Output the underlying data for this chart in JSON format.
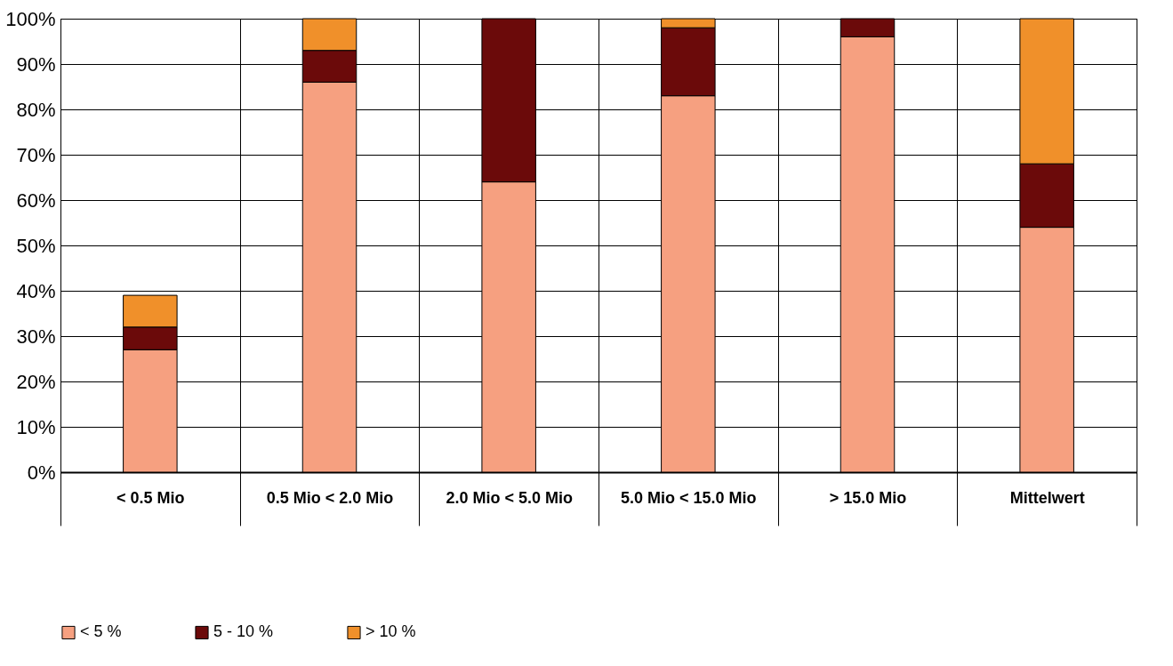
{
  "chart_data": {
    "type": "bar",
    "stacked": true,
    "categories": [
      "< 0.5 Mio",
      "0.5 Mio < 2.0 Mio",
      "2.0 Mio < 5.0 Mio",
      "5.0 Mio < 15.0 Mio",
      "> 15.0 Mio",
      "Mittelwert"
    ],
    "series": [
      {
        "name": "< 5 %",
        "color": "#f6a080",
        "values": [
          27,
          86,
          64,
          83,
          96,
          54
        ]
      },
      {
        "name": "5 - 10 %",
        "color": "#6b0a0a",
        "values": [
          5,
          7,
          36,
          15,
          4,
          14
        ]
      },
      {
        "name": "> 10 %",
        "color": "#f0902a",
        "values": [
          7,
          7,
          null,
          2,
          null,
          32
        ]
      }
    ],
    "ylim": [
      0,
      100
    ],
    "yticks": [
      {
        "value": 0,
        "label": "0%"
      },
      {
        "value": 10,
        "label": "10%"
      },
      {
        "value": 20,
        "label": "20%"
      },
      {
        "value": 30,
        "label": "30%"
      },
      {
        "value": 40,
        "label": "40%"
      },
      {
        "value": 50,
        "label": "50%"
      },
      {
        "value": 60,
        "label": "60%"
      },
      {
        "value": 70,
        "label": "70%"
      },
      {
        "value": 80,
        "label": "80%"
      },
      {
        "value": 90,
        "label": "90%"
      },
      {
        "value": 100,
        "label": "100%"
      }
    ],
    "grid": true,
    "legend": "bottom"
  }
}
